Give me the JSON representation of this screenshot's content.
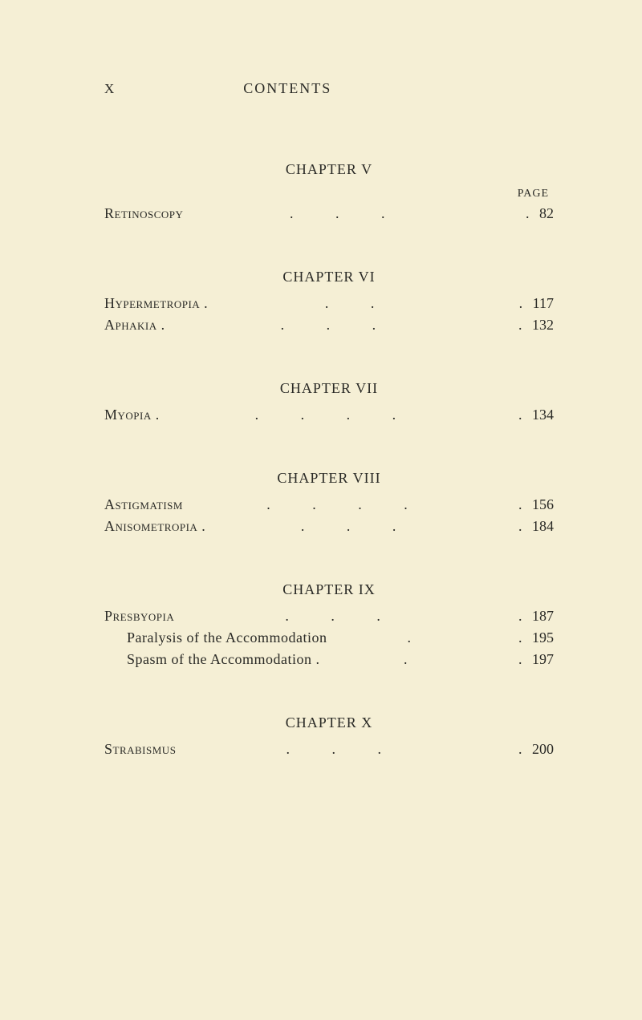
{
  "header": {
    "pageNumeral": "X",
    "title": "CONTENTS"
  },
  "pageLabel": "PAGE",
  "chapters": [
    {
      "title": "CHAPTER V",
      "showPageLabel": true,
      "entries": [
        {
          "label": "Retinoscopy",
          "smallCaps": true,
          "indent": false,
          "page": "82",
          "dots": ".   .   ."
        }
      ]
    },
    {
      "title": "CHAPTER VI",
      "showPageLabel": false,
      "entries": [
        {
          "label": "Hypermetropia .",
          "smallCaps": true,
          "indent": false,
          "page": "117",
          "dots": ".   ."
        },
        {
          "label": "Aphakia .",
          "smallCaps": true,
          "indent": false,
          "page": "132",
          "dots": ".   .   ."
        }
      ]
    },
    {
      "title": "CHAPTER VII",
      "showPageLabel": false,
      "entries": [
        {
          "label": "Myopia .",
          "smallCaps": true,
          "indent": false,
          "page": "134",
          "dots": ".   .   .   ."
        }
      ]
    },
    {
      "title": "CHAPTER VIII",
      "showPageLabel": false,
      "entries": [
        {
          "label": "Astigmatism",
          "smallCaps": true,
          "indent": false,
          "page": "156",
          "dots": ".   .   .   ."
        },
        {
          "label": "Anisometropia .",
          "smallCaps": true,
          "indent": false,
          "page": "184",
          "dots": ".   .   ."
        }
      ]
    },
    {
      "title": "CHAPTER IX",
      "showPageLabel": false,
      "entries": [
        {
          "label": "Presbyopia",
          "smallCaps": true,
          "indent": false,
          "page": "187",
          "dots": ".   .   ."
        },
        {
          "label": "Paralysis of the Accommodation",
          "smallCaps": false,
          "indent": true,
          "page": "195",
          "dots": "."
        },
        {
          "label": "Spasm of the Accommodation  .",
          "smallCaps": false,
          "indent": true,
          "page": "197",
          "dots": "."
        }
      ]
    },
    {
      "title": "CHAPTER X",
      "showPageLabel": false,
      "entries": [
        {
          "label": "Strabismus",
          "smallCaps": true,
          "indent": false,
          "page": "200",
          "dots": ".   .   ."
        }
      ]
    }
  ]
}
